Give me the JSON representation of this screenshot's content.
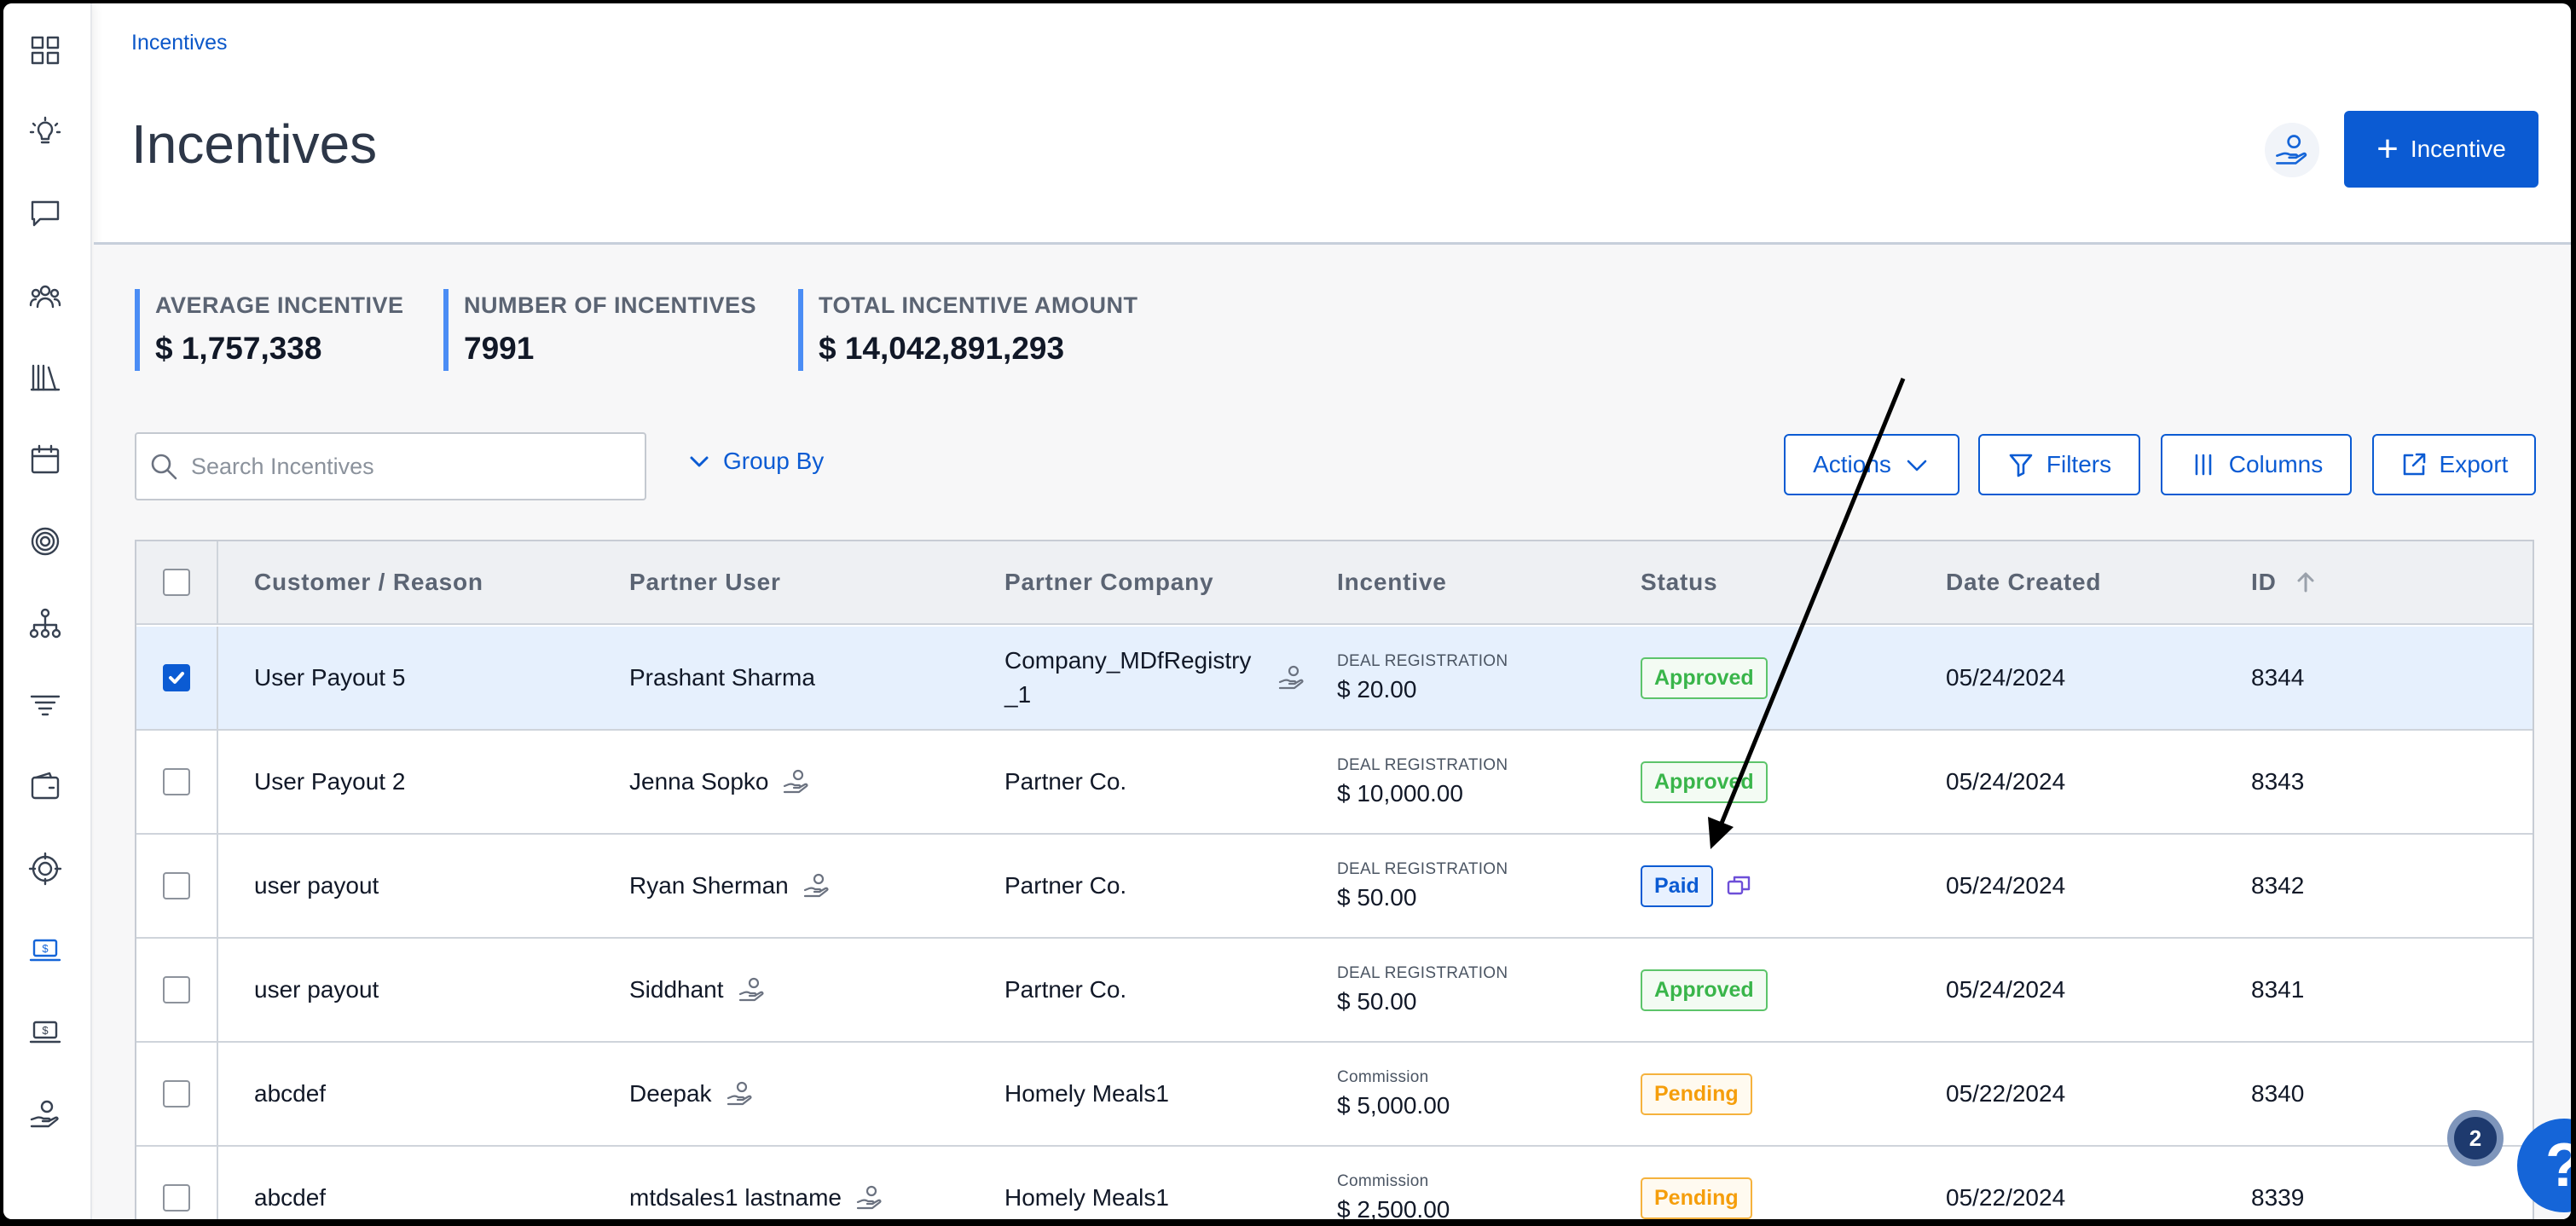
{
  "sidebar": {
    "icons": [
      "dashboard-icon",
      "lightbulb-icon",
      "chat-icon",
      "users-icon",
      "library-icon",
      "calendar-icon",
      "target-icon",
      "hierarchy-icon",
      "filter-lines-icon",
      "wallet-icon",
      "globe-settings-icon",
      "incentive-laptop-icon",
      "payout-laptop-icon",
      "hand-coin-icon"
    ]
  },
  "header": {
    "breadcrumb": "Incentives",
    "title": "Incentives",
    "add_button_label": "Incentive"
  },
  "stats": [
    {
      "label": "AVERAGE INCENTIVE",
      "value": "$ 1,757,338"
    },
    {
      "label": "NUMBER OF INCENTIVES",
      "value": "7991"
    },
    {
      "label": "TOTAL INCENTIVE AMOUNT",
      "value": "$ 14,042,891,293"
    }
  ],
  "toolbar": {
    "search_placeholder": "Search Incentives",
    "group_by": "Group By",
    "actions": "Actions",
    "filters": "Filters",
    "columns": "Columns",
    "export": "Export"
  },
  "table": {
    "columns": [
      "Customer / Reason",
      "Partner User",
      "Partner Company",
      "Incentive",
      "Status",
      "Date Created",
      "ID"
    ],
    "rows": [
      {
        "selected": true,
        "customer": "User Payout 5",
        "user": "Prashant Sharma",
        "user_icon": false,
        "company": "Company_MDfRegistry_1",
        "company_icon": true,
        "incentive_type": "DEAL REGISTRATION",
        "amount": "$ 20.00",
        "status": "Approved",
        "date": "05/24/2024",
        "id": "8344"
      },
      {
        "selected": false,
        "customer": "User Payout 2",
        "user": "Jenna Sopko",
        "user_icon": true,
        "company": "Partner Co.",
        "company_icon": false,
        "incentive_type": "DEAL REGISTRATION",
        "amount": "$ 10,000.00",
        "status": "Approved",
        "date": "05/24/2024",
        "id": "8343"
      },
      {
        "selected": false,
        "customer": "user payout",
        "user": "Ryan Sherman",
        "user_icon": true,
        "company": "Partner Co.",
        "company_icon": false,
        "incentive_type": "DEAL REGISTRATION",
        "amount": "$ 50.00",
        "status": "Paid",
        "date": "05/24/2024",
        "id": "8342"
      },
      {
        "selected": false,
        "customer": "user payout",
        "user": "Siddhant",
        "user_icon": true,
        "company": "Partner Co.",
        "company_icon": false,
        "incentive_type": "DEAL REGISTRATION",
        "amount": "$ 50.00",
        "status": "Approved",
        "date": "05/24/2024",
        "id": "8341"
      },
      {
        "selected": false,
        "customer": "abcdef",
        "user": "Deepak",
        "user_icon": true,
        "company": "Homely Meals1",
        "company_icon": false,
        "incentive_type": "Commission",
        "amount": "$ 5,000.00",
        "status": "Pending",
        "date": "05/22/2024",
        "id": "8340"
      },
      {
        "selected": false,
        "customer": "abcdef",
        "user": "mtdsales1 lastname",
        "user_icon": true,
        "company": "Homely Meals1",
        "company_icon": false,
        "incentive_type": "Commission",
        "amount": "$ 2,500.00",
        "status": "Pending",
        "date": "05/22/2024",
        "id": "8339"
      }
    ]
  },
  "help": {
    "label": "?",
    "badge_count": "2"
  },
  "colors": {
    "primary": "#0b5bd3",
    "approved": "#39b54a",
    "pending": "#f59e0b",
    "selected_row": "#e6f0fd"
  }
}
